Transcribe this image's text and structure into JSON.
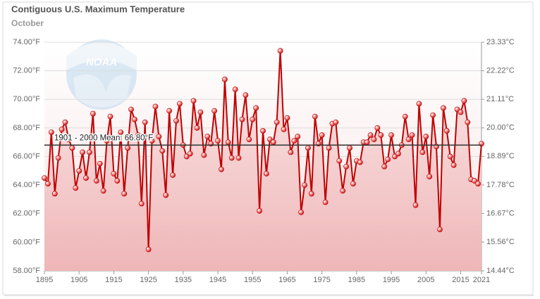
{
  "chart_data": {
    "type": "line",
    "title": "Contiguous U.S. Maximum Temperature",
    "subtitle": "October",
    "logo_text": "NOAA",
    "x": [
      1895,
      1896,
      1897,
      1898,
      1899,
      1900,
      1901,
      1902,
      1903,
      1904,
      1905,
      1906,
      1907,
      1908,
      1909,
      1910,
      1911,
      1912,
      1913,
      1914,
      1915,
      1916,
      1917,
      1918,
      1919,
      1920,
      1921,
      1922,
      1923,
      1924,
      1925,
      1926,
      1927,
      1928,
      1929,
      1930,
      1931,
      1932,
      1933,
      1934,
      1935,
      1936,
      1937,
      1938,
      1939,
      1940,
      1941,
      1942,
      1943,
      1944,
      1945,
      1946,
      1947,
      1948,
      1949,
      1950,
      1951,
      1952,
      1953,
      1954,
      1955,
      1956,
      1957,
      1958,
      1959,
      1960,
      1961,
      1962,
      1963,
      1964,
      1965,
      1966,
      1967,
      1968,
      1969,
      1970,
      1971,
      1972,
      1973,
      1974,
      1975,
      1976,
      1977,
      1978,
      1979,
      1980,
      1981,
      1982,
      1983,
      1984,
      1985,
      1986,
      1987,
      1988,
      1989,
      1990,
      1991,
      1992,
      1993,
      1994,
      1995,
      1996,
      1997,
      1998,
      1999,
      2000,
      2001,
      2002,
      2003,
      2004,
      2005,
      2006,
      2007,
      2008,
      2009,
      2010,
      2011,
      2012,
      2013,
      2014,
      2015,
      2016,
      2017,
      2018,
      2019,
      2020,
      2021
    ],
    "series": [
      {
        "color": "#c00000",
        "values": [
          64.5,
          64.1,
          67.7,
          63.4,
          65.9,
          67.9,
          68.4,
          67.2,
          66.6,
          63.8,
          65.0,
          66.3,
          64.5,
          66.3,
          69.0,
          64.3,
          65.5,
          63.6,
          67.1,
          68.8,
          64.8,
          64.3,
          67.7,
          63.4,
          66.6,
          69.3,
          68.6,
          67.5,
          62.7,
          68.4,
          59.5,
          67.1,
          69.5,
          67.4,
          66.4,
          63.3,
          69.2,
          64.7,
          68.5,
          69.7,
          66.8,
          66.0,
          66.2,
          69.9,
          68.0,
          69.1,
          66.1,
          67.4,
          66.9,
          69.2,
          67.1,
          65.1,
          71.4,
          67.0,
          65.9,
          70.7,
          65.9,
          68.6,
          70.3,
          67.2,
          68.6,
          69.4,
          62.2,
          67.8,
          64.8,
          67.2,
          67.0,
          68.4,
          73.4,
          67.9,
          68.7,
          66.3,
          67.1,
          67.4,
          62.1,
          64.0,
          66.6,
          63.4,
          68.8,
          66.9,
          67.5,
          62.8,
          66.6,
          68.3,
          68.4,
          65.7,
          63.6,
          65.3,
          66.6,
          64.1,
          65.7,
          65.6,
          67.0,
          67.0,
          67.5,
          67.2,
          68.0,
          67.5,
          65.3,
          65.8,
          67.5,
          66.0,
          66.2,
          66.8,
          68.8,
          67.2,
          67.5,
          62.6,
          69.7,
          66.3,
          67.4,
          64.6,
          68.9,
          66.7,
          60.9,
          69.4,
          67.8,
          66.0,
          65.4,
          69.3,
          69.1,
          69.9,
          68.4,
          64.4,
          64.3,
          64.1,
          66.9
        ]
      }
    ],
    "mean": {
      "value": 66.8,
      "label": "1901 - 2000 Mean: 66.80°F"
    },
    "xlim": [
      1895,
      2021
    ],
    "xticks": [
      1895,
      1905,
      1915,
      1925,
      1935,
      1945,
      1955,
      1965,
      1975,
      1985,
      1995,
      2005,
      2015,
      2021
    ],
    "ylim": [
      58,
      74
    ],
    "yticks": [
      {
        "value": 58,
        "label": "58.00°F"
      },
      {
        "value": 60,
        "label": "60.00°F"
      },
      {
        "value": 62,
        "label": "62.00°F"
      },
      {
        "value": 64,
        "label": "64.00°F"
      },
      {
        "value": 66,
        "label": "66.00°F"
      },
      {
        "value": 68,
        "label": "68.00°F"
      },
      {
        "value": 70,
        "label": "70.00°F"
      },
      {
        "value": 72,
        "label": "72.00°F"
      },
      {
        "value": 74,
        "label": "74.00°F"
      }
    ],
    "y2lim": [
      14.44,
      23.33
    ],
    "y2ticks": [
      {
        "value": 14.44,
        "label": "14.44°C"
      },
      {
        "value": 15.56,
        "label": "15.56°C"
      },
      {
        "value": 16.67,
        "label": "16.67°C"
      },
      {
        "value": 17.78,
        "label": "17.78°C"
      },
      {
        "value": 18.89,
        "label": "18.89°C"
      },
      {
        "value": 20.0,
        "label": "20.00°C"
      },
      {
        "value": 21.11,
        "label": "21.11°C"
      },
      {
        "value": 22.22,
        "label": "22.22°C"
      },
      {
        "value": 23.33,
        "label": "23.33°C"
      }
    ],
    "grid": true
  }
}
